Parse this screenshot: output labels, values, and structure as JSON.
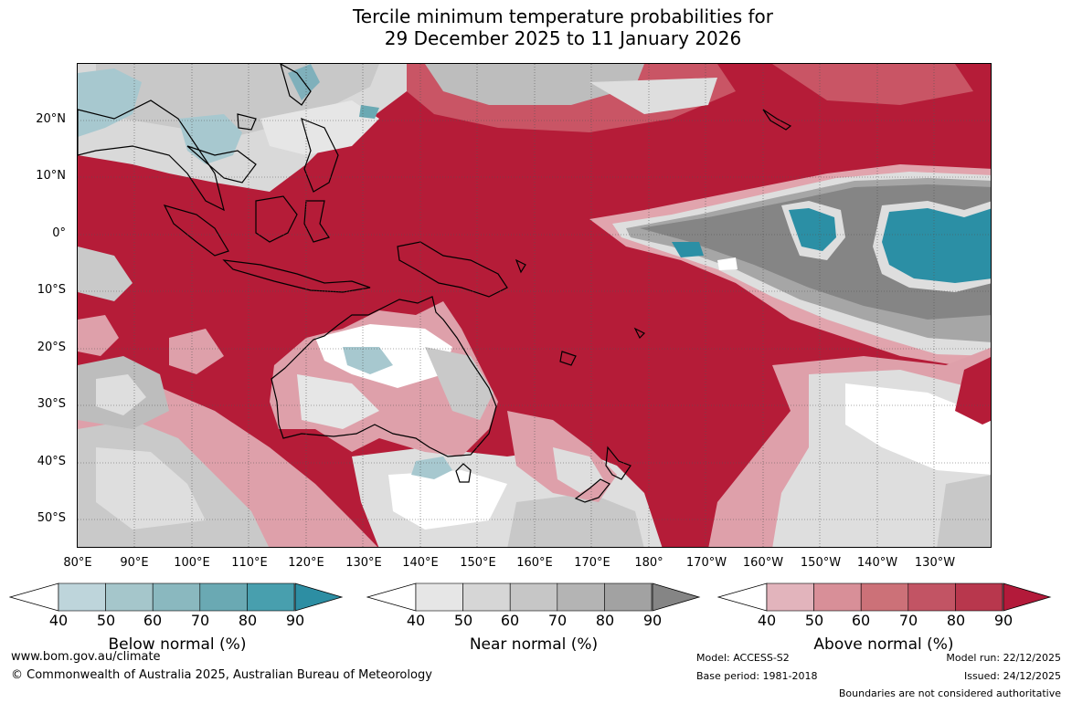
{
  "title": {
    "line1": "Tercile minimum temperature probabilities for",
    "line2": "29 December 2025 to 11 January 2026"
  },
  "map": {
    "latitude_labels": [
      "20°N",
      "10°N",
      "0°",
      "10°S",
      "20°S",
      "30°S",
      "40°S",
      "50°S"
    ],
    "longitude_labels": [
      "80°E",
      "90°E",
      "100°E",
      "110°E",
      "120°E",
      "130°E",
      "140°E",
      "150°E",
      "160°E",
      "170°E",
      "180°",
      "170°W",
      "160°W",
      "150°W",
      "140°W",
      "130°W"
    ],
    "colors": {
      "above_dark": "#b51c38",
      "above_mid": "#c95565",
      "above_light": "#dea0aa",
      "near_dark": "#858585",
      "near_mid": "#bcbcbc",
      "near_light": "#dedede",
      "below_dark": "#2b8fa5",
      "below_light": "#a7c8cf",
      "white": "#ffffff",
      "coast": "#000000"
    }
  },
  "legend": {
    "below": {
      "title": "Below normal (%)",
      "ticks": [
        "40",
        "50",
        "60",
        "70",
        "80",
        "90"
      ],
      "colors": [
        "#bed5db",
        "#a5c6cb",
        "#8ab8bf",
        "#6aa9b3",
        "#489fae",
        "#2d8ea3"
      ]
    },
    "near": {
      "title": "Near normal (%)",
      "ticks": [
        "40",
        "50",
        "60",
        "70",
        "80",
        "90"
      ],
      "colors": [
        "#e6e6e6",
        "#d6d6d6",
        "#c6c6c6",
        "#b4b4b4",
        "#a2a2a2",
        "#858585"
      ]
    },
    "above": {
      "title": "Above normal (%)",
      "ticks": [
        "40",
        "50",
        "60",
        "70",
        "80",
        "90"
      ],
      "colors": [
        "#e2b4bc",
        "#d88f98",
        "#cc7178",
        "#c25464",
        "#b8374d",
        "#b31a3a"
      ]
    }
  },
  "footer": {
    "website": "www.bom.gov.au/climate",
    "copyright": "© Commonwealth of Australia 2025, Australian Bureau of Meteorology",
    "model": "Model: ACCESS-S2",
    "base_period": "Base period: 1981-2018",
    "model_run": "Model run: 22/12/2025",
    "issued": "Issued: 24/12/2025",
    "disclaimer": "Boundaries are not considered authoritative"
  }
}
